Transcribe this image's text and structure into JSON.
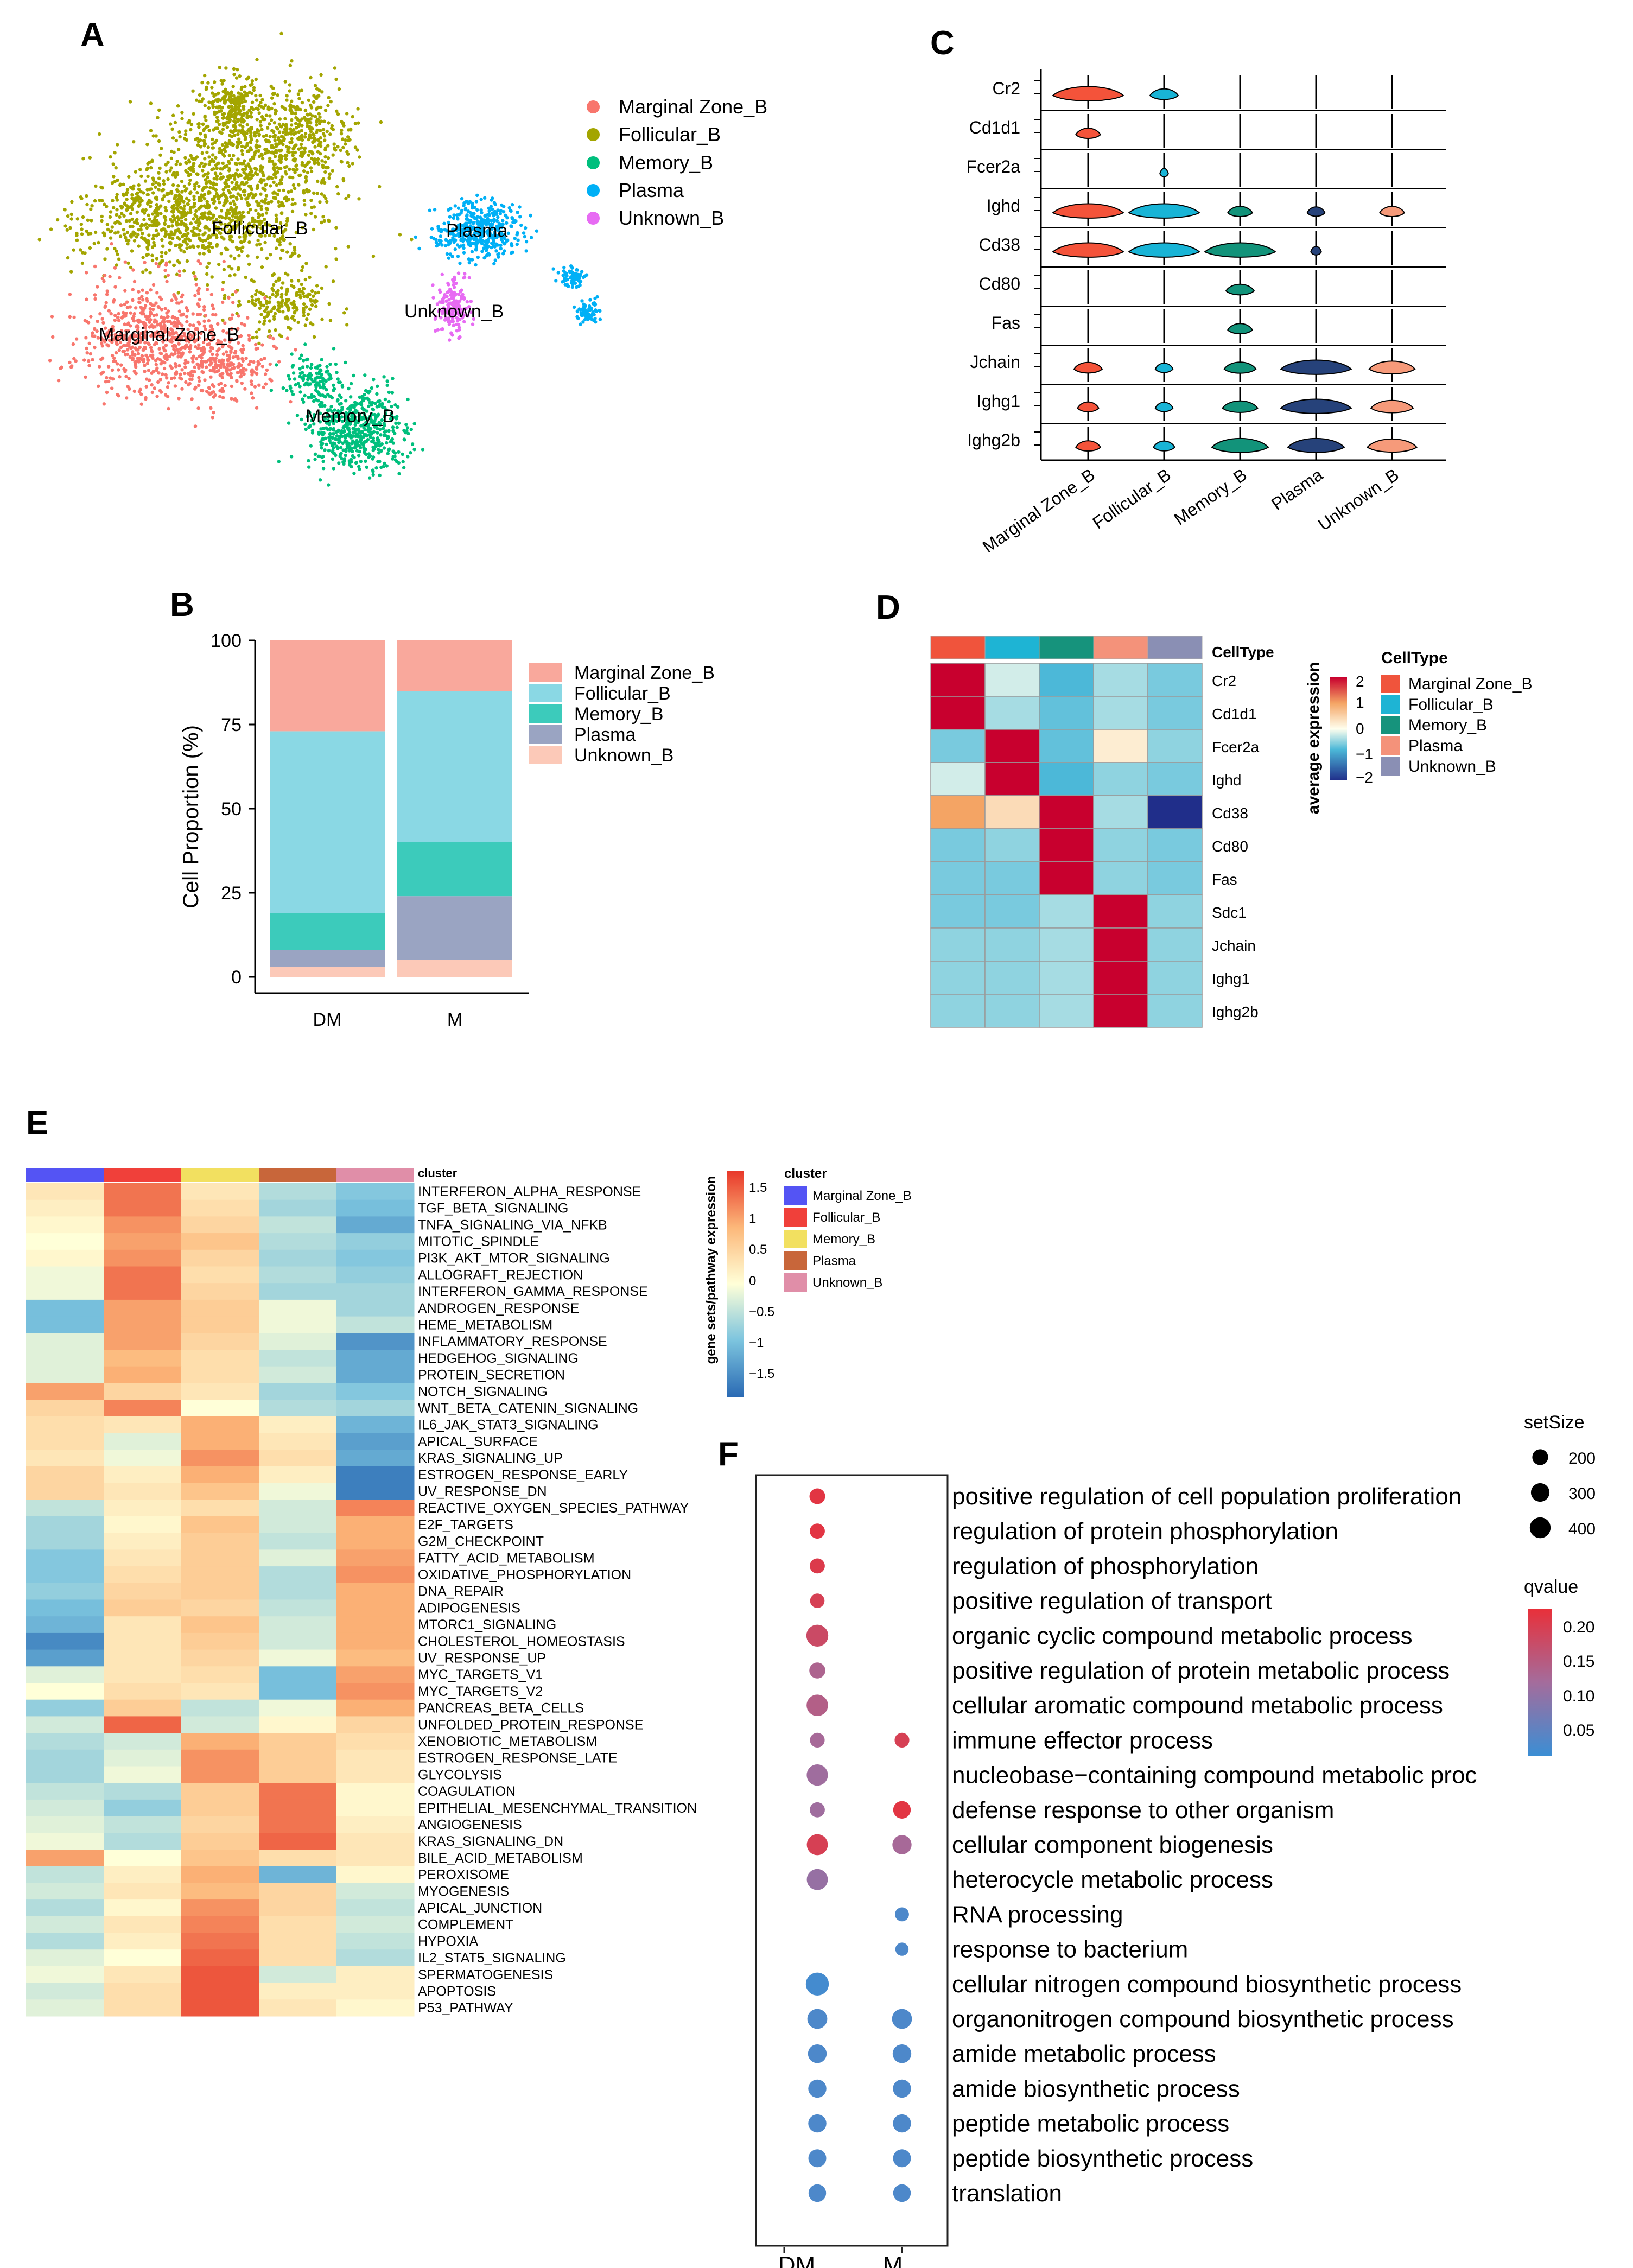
{
  "colors": {
    "marginal_zone_b": "#f8766d",
    "follicular_b": "#a3a500",
    "memory_b": "#00bf7d",
    "plasma": "#00b0f6",
    "unknown_b": "#e76bf3",
    "violin_mz": "#f4533a",
    "violin_fol": "#18b4d6",
    "violin_mem": "#12937a",
    "violin_pla": "#26427a",
    "violin_unk": "#f69a7a"
  },
  "chart_data": [
    {
      "panel": "A",
      "type": "scatter",
      "title": "",
      "legend_position": "right",
      "legend": [
        "Marginal Zone_B",
        "Follicular_B",
        "Memory_B",
        "Plasma",
        "Unknown_B"
      ],
      "cluster_labels": [
        "Follicular_B",
        "Plasma",
        "Unknown_B",
        "Marginal Zone_B",
        "Memory_B"
      ]
    },
    {
      "panel": "B",
      "type": "bar",
      "stacked": true,
      "ylabel": "Cell Proportion (%)",
      "xlabel": "",
      "ylim": [
        0,
        100
      ],
      "yticks": [
        "0",
        "25",
        "50",
        "75",
        "100"
      ],
      "categories": [
        "DM",
        "M"
      ],
      "legend_position": "right",
      "series": [
        {
          "name": "Unknown_B",
          "values": [
            3,
            5
          ]
        },
        {
          "name": "Plasma",
          "values": [
            5,
            19
          ]
        },
        {
          "name": "Memory_B",
          "values": [
            11,
            16
          ]
        },
        {
          "name": "Follicular_B",
          "values": [
            54,
            45
          ]
        },
        {
          "name": "Marginal Zone_B",
          "values": [
            27,
            15
          ]
        }
      ],
      "series_colors": [
        "#fcc9b8",
        "#9aa4c2",
        "#3ccbbb",
        "#8ad8e4",
        "#f9a89c"
      ],
      "legend": [
        "Marginal Zone_B",
        "Follicular_B",
        "Memory_B",
        "Plasma",
        "Unknown_B"
      ]
    },
    {
      "panel": "C",
      "type": "violin",
      "genes": [
        "Cr2",
        "Cd1d1",
        "Fcer2a",
        "Ighd",
        "Cd38",
        "Cd80",
        "Fas",
        "Jchain",
        "Ighg1",
        "Ighg2b"
      ],
      "categories": [
        "Marginal Zone_B",
        "Follicular_B",
        "Memory_B",
        "Plasma",
        "Unknown_B"
      ],
      "relative_width": [
        [
          1.0,
          0.4,
          0.0,
          0.0,
          0.0
        ],
        [
          0.35,
          0.0,
          0.0,
          0.0,
          0.0
        ],
        [
          0.0,
          0.12,
          0.0,
          0.0,
          0.0
        ],
        [
          1.0,
          1.0,
          0.35,
          0.25,
          0.35
        ],
        [
          1.0,
          1.0,
          1.0,
          0.15,
          0.0
        ],
        [
          0.0,
          0.0,
          0.4,
          0.0,
          0.0
        ],
        [
          0.0,
          0.0,
          0.35,
          0.0,
          0.0
        ],
        [
          0.4,
          0.25,
          0.45,
          1.0,
          0.65
        ],
        [
          0.3,
          0.25,
          0.5,
          1.0,
          0.6
        ],
        [
          0.35,
          0.3,
          0.8,
          0.8,
          0.7
        ]
      ]
    },
    {
      "panel": "D",
      "type": "heatmap",
      "column_annotation_label": "CellType",
      "legend_title": "CellType",
      "legend": [
        "Marginal Zone_B",
        "Follicular_B",
        "Memory_B",
        "Plasma",
        "Unknown_B"
      ],
      "annotation_colors": [
        "#f0543c",
        "#1eb4d4",
        "#16937c",
        "#f4927a",
        "#8a8fb4"
      ],
      "colorbar_title": "average expression",
      "colorbar_ticks": [
        "2",
        "1",
        "0",
        "−1",
        "−2"
      ],
      "colorbar_range": [
        -2,
        2
      ],
      "rows": [
        "Cr2",
        "Cd1d1",
        "Fcer2a",
        "Ighd",
        "Cd38",
        "Cd80",
        "Fas",
        "Sdc1",
        "Jchain",
        "Ighg1",
        "Ighg2b"
      ],
      "columns": [
        "Marginal Zone_B",
        "Follicular_B",
        "Memory_B",
        "Plasma",
        "Unknown_B"
      ],
      "values": [
        [
          2.0,
          -0.2,
          -0.8,
          -0.4,
          -0.6
        ],
        [
          2.0,
          -0.4,
          -0.7,
          -0.4,
          -0.6
        ],
        [
          -0.6,
          2.0,
          -0.7,
          0.2,
          -0.5
        ],
        [
          -0.2,
          2.0,
          -0.8,
          -0.5,
          -0.6
        ],
        [
          1.0,
          0.4,
          2.0,
          -0.4,
          -2.0
        ],
        [
          -0.6,
          -0.5,
          2.0,
          -0.5,
          -0.6
        ],
        [
          -0.6,
          -0.6,
          2.0,
          -0.5,
          -0.6
        ],
        [
          -0.6,
          -0.6,
          -0.4,
          2.0,
          -0.5
        ],
        [
          -0.5,
          -0.5,
          -0.4,
          2.0,
          -0.5
        ],
        [
          -0.5,
          -0.5,
          -0.4,
          2.0,
          -0.5
        ],
        [
          -0.5,
          -0.5,
          -0.4,
          2.0,
          -0.5
        ]
      ]
    },
    {
      "panel": "E",
      "type": "heatmap",
      "column_annotation_label": "cluster",
      "legend_title": "cluster",
      "legend": [
        "Marginal Zone_B",
        "Follicular_B",
        "Memory_B",
        "Plasma",
        "Unknown_B"
      ],
      "annotation_colors": [
        "#5454f4",
        "#f0403a",
        "#f2e060",
        "#c8663a",
        "#e08ea8"
      ],
      "colorbar_title": "gene sets/pathway expression",
      "colorbar_ticks": [
        "1.5",
        "1",
        "0.5",
        "0",
        "−0.5",
        "−1",
        "−1.5"
      ],
      "colorbar_range": [
        -1.7,
        1.7
      ],
      "columns": [
        "Marginal Zone_B",
        "Follicular_B",
        "Memory_B",
        "Plasma",
        "Unknown_B"
      ],
      "rows": [
        "INTERFERON_ALPHA_RESPONSE",
        "TGF_BETA_SIGNALING",
        "TNFA_SIGNALING_VIA_NFKB",
        "MITOTIC_SPINDLE",
        "PI3K_AKT_MTOR_SIGNALING",
        "ALLOGRAFT_REJECTION",
        "INTERFERON_GAMMA_RESPONSE",
        "ANDROGEN_RESPONSE",
        "HEME_METABOLISM",
        "INFLAMMATORY_RESPONSE",
        "HEDGEHOG_SIGNALING",
        "PROTEIN_SECRETION",
        "NOTCH_SIGNALING",
        "WNT_BETA_CATENIN_SIGNALING",
        "IL6_JAK_STAT3_SIGNALING",
        "APICAL_SURFACE",
        "KRAS_SIGNALING_UP",
        "ESTROGEN_RESPONSE_EARLY",
        "UV_RESPONSE_DN",
        "REACTIVE_OXYGEN_SPECIES_PATHWAY",
        "E2F_TARGETS",
        "G2M_CHECKPOINT",
        "FATTY_ACID_METABOLISM",
        "OXIDATIVE_PHOSPHORYLATION",
        "DNA_REPAIR",
        "ADIPOGENESIS",
        "MTORC1_SIGNALING",
        "CHOLESTEROL_HOMEOSTASIS",
        "UV_RESPONSE_UP",
        "MYC_TARGETS_V1",
        "MYC_TARGETS_V2",
        "PANCREAS_BETA_CELLS",
        "UNFOLDED_PROTEIN_RESPONSE",
        "XENOBIOTIC_METABOLISM",
        "ESTROGEN_RESPONSE_LATE",
        "GLYCOLYSIS",
        "COAGULATION",
        "EPITHELIAL_MESENCHYMAL_TRANSITION",
        "ANGIOGENESIS",
        "KRAS_SIGNALING_DN",
        "BILE_ACID_METABOLISM",
        "PEROXISOME",
        "MYOGENESIS",
        "APICAL_JUNCTION",
        "COMPLEMENT",
        "HYPOXIA",
        "IL2_STAT5_SIGNALING",
        "SPERMATOGENESIS",
        "APOPTOSIS",
        "P53_PATHWAY"
      ],
      "values": [
        [
          0.3,
          1.3,
          0.3,
          -0.5,
          -0.8
        ],
        [
          0.2,
          1.3,
          0.4,
          -0.6,
          -0.9
        ],
        [
          0.1,
          1.1,
          0.5,
          -0.4,
          -1.1
        ],
        [
          0.0,
          1.0,
          0.7,
          -0.5,
          -0.7
        ],
        [
          0.1,
          1.1,
          0.5,
          -0.6,
          -0.8
        ],
        [
          -0.1,
          1.3,
          0.4,
          -0.5,
          -0.7
        ],
        [
          -0.1,
          1.3,
          0.5,
          -0.6,
          -0.6
        ],
        [
          -0.9,
          1.0,
          0.6,
          -0.1,
          -0.6
        ],
        [
          -0.9,
          1.0,
          0.6,
          -0.1,
          -0.4
        ],
        [
          -0.2,
          1.0,
          0.5,
          -0.2,
          -1.3
        ],
        [
          -0.2,
          0.8,
          0.4,
          -0.4,
          -1.1
        ],
        [
          -0.2,
          0.9,
          0.4,
          -0.3,
          -1.1
        ],
        [
          1.0,
          0.5,
          0.3,
          -0.6,
          -0.8
        ],
        [
          0.5,
          1.2,
          0.0,
          -0.5,
          -0.6
        ],
        [
          0.4,
          0.3,
          0.9,
          0.2,
          -1.0
        ],
        [
          0.4,
          -0.2,
          0.9,
          0.3,
          -1.2
        ],
        [
          0.3,
          -0.1,
          1.1,
          0.4,
          -1.1
        ],
        [
          0.5,
          0.2,
          0.9,
          0.2,
          -1.5
        ],
        [
          0.5,
          0.3,
          0.7,
          -0.1,
          -1.5
        ],
        [
          -0.4,
          0.2,
          0.4,
          -0.3,
          1.2
        ],
        [
          -0.6,
          0.1,
          0.7,
          -0.3,
          0.9
        ],
        [
          -0.6,
          0.2,
          0.6,
          -0.4,
          0.9
        ],
        [
          -0.8,
          0.3,
          0.6,
          -0.2,
          1.0
        ],
        [
          -0.8,
          0.4,
          0.6,
          -0.5,
          1.1
        ],
        [
          -0.7,
          0.5,
          0.6,
          -0.5,
          0.9
        ],
        [
          -0.9,
          0.6,
          0.5,
          -0.4,
          0.9
        ],
        [
          -1.0,
          0.3,
          0.7,
          -0.3,
          0.9
        ],
        [
          -1.4,
          0.3,
          0.6,
          -0.3,
          0.9
        ],
        [
          -1.2,
          0.3,
          0.5,
          -0.1,
          0.8
        ],
        [
          -0.2,
          0.3,
          0.4,
          -0.9,
          1.0
        ],
        [
          0.0,
          0.4,
          0.3,
          -0.9,
          1.1
        ],
        [
          -0.7,
          0.6,
          -0.4,
          -0.1,
          0.9
        ],
        [
          -0.3,
          1.4,
          -0.3,
          0.1,
          0.5
        ],
        [
          -0.5,
          -0.3,
          0.9,
          0.6,
          0.4
        ],
        [
          -0.6,
          -0.2,
          1.1,
          0.6,
          0.3
        ],
        [
          -0.6,
          -0.1,
          1.1,
          0.6,
          0.3
        ],
        [
          -0.4,
          -0.5,
          0.6,
          1.3,
          0.1
        ],
        [
          -0.3,
          -0.7,
          0.6,
          1.3,
          0.1
        ],
        [
          -0.2,
          -0.4,
          0.5,
          1.3,
          0.2
        ],
        [
          -0.1,
          -0.5,
          0.6,
          1.4,
          0.3
        ],
        [
          1.0,
          0.0,
          0.7,
          0.4,
          0.3
        ],
        [
          -0.4,
          0.2,
          0.9,
          -1.0,
          0.1
        ],
        [
          -0.3,
          0.3,
          0.8,
          0.5,
          -0.3
        ],
        [
          -0.5,
          0.1,
          1.1,
          0.5,
          -0.4
        ],
        [
          -0.3,
          0.3,
          1.2,
          0.4,
          -0.3
        ],
        [
          -0.5,
          0.2,
          1.3,
          0.4,
          -0.4
        ],
        [
          -0.2,
          0.0,
          1.4,
          0.4,
          -0.5
        ],
        [
          -0.1,
          0.3,
          1.5,
          -0.3,
          0.2
        ],
        [
          -0.3,
          0.4,
          1.5,
          0.2,
          0.2
        ],
        [
          -0.2,
          0.4,
          1.5,
          0.3,
          0.1
        ]
      ]
    },
    {
      "panel": "F",
      "type": "scatter",
      "subtype": "dotplot",
      "categories": [
        "DM",
        "M"
      ],
      "terms": [
        "positive regulation of cell population proliferation",
        "regulation of protein phosphorylation",
        "regulation of phosphorylation",
        "positive regulation of transport",
        "organic cyclic compound metabolic process",
        "positive regulation of protein metabolic process",
        "cellular aromatic compound metabolic process",
        "immune effector process",
        "nucleobase−containing compound metabolic proc",
        "defense response to other organism",
        "cellular component biogenesis",
        "heterocycle metabolic process",
        "RNA processing",
        "response to bacterium",
        "cellular nitrogen compound biosynthetic process",
        "organonitrogen compound biosynthetic process",
        "amide metabolic process",
        "amide biosynthetic process",
        "peptide metabolic process",
        "peptide biosynthetic process",
        "translation"
      ],
      "points": [
        {
          "term": 0,
          "group": "DM",
          "setSize": 180,
          "qvalue": 0.23
        },
        {
          "term": 1,
          "group": "DM",
          "setSize": 160,
          "qvalue": 0.23
        },
        {
          "term": 2,
          "group": "DM",
          "setSize": 160,
          "qvalue": 0.22
        },
        {
          "term": 3,
          "group": "DM",
          "setSize": 140,
          "qvalue": 0.21
        },
        {
          "term": 4,
          "group": "DM",
          "setSize": 420,
          "qvalue": 0.19
        },
        {
          "term": 5,
          "group": "DM",
          "setSize": 190,
          "qvalue": 0.14
        },
        {
          "term": 6,
          "group": "DM",
          "setSize": 400,
          "qvalue": 0.15
        },
        {
          "term": 7,
          "group": "DM",
          "setSize": 150,
          "qvalue": 0.13
        },
        {
          "term": 7,
          "group": "M",
          "setSize": 150,
          "qvalue": 0.21
        },
        {
          "term": 8,
          "group": "DM",
          "setSize": 390,
          "qvalue": 0.12
        },
        {
          "term": 9,
          "group": "DM",
          "setSize": 160,
          "qvalue": 0.12
        },
        {
          "term": 9,
          "group": "M",
          "setSize": 240,
          "qvalue": 0.23
        },
        {
          "term": 10,
          "group": "DM",
          "setSize": 380,
          "qvalue": 0.21
        },
        {
          "term": 10,
          "group": "M",
          "setSize": 300,
          "qvalue": 0.13
        },
        {
          "term": 11,
          "group": "DM",
          "setSize": 380,
          "qvalue": 0.11
        },
        {
          "term": 12,
          "group": "M",
          "setSize": 130,
          "qvalue": 0.03
        },
        {
          "term": 13,
          "group": "M",
          "setSize": 110,
          "qvalue": 0.03
        },
        {
          "term": 14,
          "group": "DM",
          "setSize": 470,
          "qvalue": 0.02
        },
        {
          "term": 15,
          "group": "DM",
          "setSize": 330,
          "qvalue": 0.03
        },
        {
          "term": 15,
          "group": "M",
          "setSize": 330,
          "qvalue": 0.03
        },
        {
          "term": 16,
          "group": "DM",
          "setSize": 280,
          "qvalue": 0.03
        },
        {
          "term": 16,
          "group": "M",
          "setSize": 280,
          "qvalue": 0.03
        },
        {
          "term": 17,
          "group": "DM",
          "setSize": 260,
          "qvalue": 0.03
        },
        {
          "term": 17,
          "group": "M",
          "setSize": 260,
          "qvalue": 0.03
        },
        {
          "term": 18,
          "group": "DM",
          "setSize": 260,
          "qvalue": 0.03
        },
        {
          "term": 18,
          "group": "M",
          "setSize": 260,
          "qvalue": 0.03
        },
        {
          "term": 19,
          "group": "DM",
          "setSize": 250,
          "qvalue": 0.03
        },
        {
          "term": 19,
          "group": "M",
          "setSize": 250,
          "qvalue": 0.03
        },
        {
          "term": 20,
          "group": "DM",
          "setSize": 240,
          "qvalue": 0.03
        },
        {
          "term": 20,
          "group": "M",
          "setSize": 240,
          "qvalue": 0.03
        }
      ],
      "size_legend_title": "setSize",
      "size_legend": [
        {
          "label": "200",
          "value": 200
        },
        {
          "label": "300",
          "value": 300
        },
        {
          "label": "400",
          "value": 400
        }
      ],
      "color_legend_title": "qvalue",
      "color_legend_ticks": [
        "0.20",
        "0.15",
        "0.10",
        "0.05"
      ],
      "qvalue_range": [
        0.01,
        0.24
      ]
    }
  ],
  "panel_letters": {
    "a": "A",
    "b": "B",
    "c": "C",
    "d": "D",
    "e": "E",
    "f": "F"
  }
}
